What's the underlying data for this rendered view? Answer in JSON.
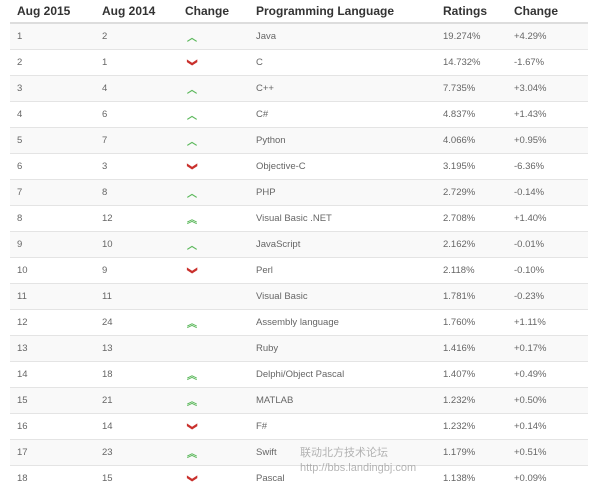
{
  "headers": [
    "Aug 2015",
    "Aug 2014",
    "Change",
    "Programming Language",
    "Ratings",
    "Change"
  ],
  "colors": {
    "up": "#5cb85c",
    "down": "#c9302c"
  },
  "rows": [
    {
      "aug2015": "1",
      "aug2014": "2",
      "trend": "up",
      "language": "Java",
      "rating": "19.274%",
      "change": "+4.29%"
    },
    {
      "aug2015": "2",
      "aug2014": "1",
      "trend": "down",
      "language": "C",
      "rating": "14.732%",
      "change": "-1.67%"
    },
    {
      "aug2015": "3",
      "aug2014": "4",
      "trend": "up",
      "language": "C++",
      "rating": "7.735%",
      "change": "+3.04%"
    },
    {
      "aug2015": "4",
      "aug2014": "6",
      "trend": "up",
      "language": "C#",
      "rating": "4.837%",
      "change": "+1.43%"
    },
    {
      "aug2015": "5",
      "aug2014": "7",
      "trend": "up",
      "language": "Python",
      "rating": "4.066%",
      "change": "+0.95%"
    },
    {
      "aug2015": "6",
      "aug2014": "3",
      "trend": "down",
      "language": "Objective-C",
      "rating": "3.195%",
      "change": "-6.36%"
    },
    {
      "aug2015": "7",
      "aug2014": "8",
      "trend": "up",
      "language": "PHP",
      "rating": "2.729%",
      "change": "-0.14%"
    },
    {
      "aug2015": "8",
      "aug2014": "12",
      "trend": "double-up",
      "language": "Visual Basic .NET",
      "rating": "2.708%",
      "change": "+1.40%"
    },
    {
      "aug2015": "9",
      "aug2014": "10",
      "trend": "up",
      "language": "JavaScript",
      "rating": "2.162%",
      "change": "-0.01%"
    },
    {
      "aug2015": "10",
      "aug2014": "9",
      "trend": "down",
      "language": "Perl",
      "rating": "2.118%",
      "change": "-0.10%"
    },
    {
      "aug2015": "11",
      "aug2014": "11",
      "trend": "none",
      "language": "Visual Basic",
      "rating": "1.781%",
      "change": "-0.23%"
    },
    {
      "aug2015": "12",
      "aug2014": "24",
      "trend": "double-up",
      "language": "Assembly language",
      "rating": "1.760%",
      "change": "+1.11%"
    },
    {
      "aug2015": "13",
      "aug2014": "13",
      "trend": "none",
      "language": "Ruby",
      "rating": "1.416%",
      "change": "+0.17%"
    },
    {
      "aug2015": "14",
      "aug2014": "18",
      "trend": "double-up",
      "language": "Delphi/Object Pascal",
      "rating": "1.407%",
      "change": "+0.49%"
    },
    {
      "aug2015": "15",
      "aug2014": "21",
      "trend": "double-up",
      "language": "MATLAB",
      "rating": "1.232%",
      "change": "+0.50%"
    },
    {
      "aug2015": "16",
      "aug2014": "14",
      "trend": "down",
      "language": "F#",
      "rating": "1.232%",
      "change": "+0.14%"
    },
    {
      "aug2015": "17",
      "aug2014": "23",
      "trend": "double-up",
      "language": "Swift",
      "rating": "1.179%",
      "change": "+0.51%"
    },
    {
      "aug2015": "18",
      "aug2014": "15",
      "trend": "down",
      "language": "Pascal",
      "rating": "1.138%",
      "change": "+0.09%"
    }
  ],
  "watermark": {
    "line1": "联动北方技术论坛",
    "line2": "http://bbs.landingbj.com"
  }
}
